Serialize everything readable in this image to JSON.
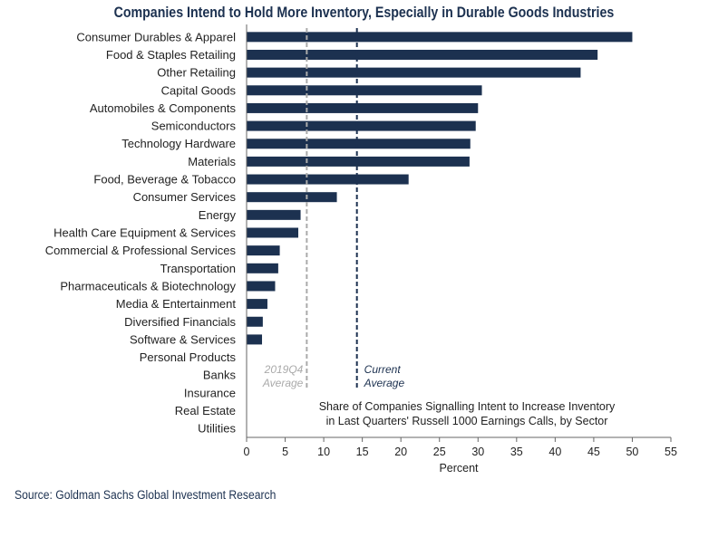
{
  "chart_data": {
    "type": "bar",
    "orientation": "horizontal",
    "title": "Companies Intend to Hold More Inventory, Especially in Durable Goods Industries",
    "xlabel": "Percent",
    "ylabel": "",
    "xlim": [
      0,
      55
    ],
    "x_ticks": [
      "0",
      "5",
      "10",
      "15",
      "20",
      "25",
      "30",
      "35",
      "40",
      "45",
      "50",
      "55"
    ],
    "categories": [
      "Consumer Durables & Apparel",
      "Food & Staples Retailing",
      "Other Retailing",
      "Capital Goods",
      "Automobiles & Components",
      "Semiconductors",
      "Technology Hardware",
      "Materials",
      "Food, Beverage & Tobacco",
      "Consumer Services",
      "Energy",
      "Health Care Equipment & Services",
      "Commercial  & Professional Services",
      "Transportation",
      "Pharmaceuticals & Biotechnology",
      "Media & Entertainment",
      "Diversified Financials",
      "Software & Services",
      "Personal Products",
      "Banks",
      "Insurance",
      "Real Estate",
      "Utilities"
    ],
    "values": [
      50,
      45.5,
      43.3,
      30.5,
      30,
      29.7,
      29,
      28.9,
      21,
      11.7,
      7,
      6.7,
      4.3,
      4.1,
      3.7,
      2.7,
      2.1,
      2,
      0,
      0,
      0,
      0,
      0
    ],
    "bar_color": "#1c3150",
    "reference_lines": [
      {
        "name": "2019Q4 Average",
        "value": 7.8,
        "label_line1": "2019Q4",
        "label_line2": "Average",
        "color": "#aaaaaa",
        "style": "dashed"
      },
      {
        "name": "Current Average",
        "value": 14.3,
        "label_line1": "Current",
        "label_line2": "Average",
        "color": "#1c3150",
        "style": "dashed"
      }
    ],
    "annotation_line1": "Share of Companies Signalling Intent to Increase Inventory",
    "annotation_line2": "in Last Quarters' Russell 1000 Earnings Calls, by Sector"
  },
  "source": "Source: Goldman Sachs Global Investment Research"
}
